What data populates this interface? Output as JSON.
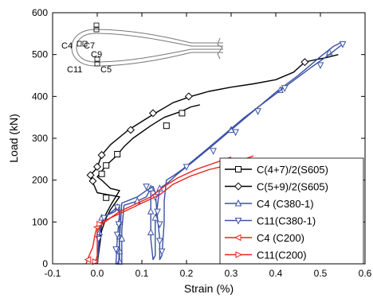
{
  "chart_data": {
    "type": "line",
    "xlabel": "Strain (%)",
    "ylabel": "Load (kN)",
    "xlim": [
      -0.1,
      0.6
    ],
    "ylim": [
      0,
      600
    ],
    "xticks": [
      -0.1,
      0.0,
      0.1,
      0.2,
      0.3,
      0.4,
      0.5,
      0.6
    ],
    "xtick_labels": [
      "-0.1",
      "0.0",
      "0.1",
      "0.2",
      "0.3",
      "0.4",
      "0.5",
      "0.6"
    ],
    "yticks": [
      0,
      100,
      200,
      300,
      400,
      500,
      600
    ],
    "ytick_labels": [
      "0",
      "100",
      "200",
      "300",
      "400",
      "500",
      "600"
    ],
    "legend_position": "bottom-right",
    "inset_labels": [
      "C4",
      "C7",
      "C9",
      "C11",
      "C5"
    ],
    "series": [
      {
        "name": "C(4+7)/2(S605)",
        "color": "#000000",
        "marker": "square",
        "points": [
          [
            0.0,
            0
          ],
          [
            0.005,
            50
          ],
          [
            0.01,
            95
          ],
          [
            0.02,
            120
          ],
          [
            0.03,
            140
          ],
          [
            0.05,
            175
          ],
          [
            0.03,
            180
          ],
          [
            0.01,
            200
          ],
          [
            0.0,
            208
          ],
          [
            0.02,
            235
          ],
          [
            0.045,
            260
          ],
          [
            0.06,
            280
          ],
          [
            0.08,
            300
          ],
          [
            0.12,
            330
          ],
          [
            0.15,
            350
          ],
          [
            0.19,
            365
          ],
          [
            0.21,
            375
          ],
          [
            0.23,
            380
          ]
        ],
        "marker_points": [
          [
            0.02,
            158
          ],
          [
            0.01,
            215
          ],
          [
            0.02,
            235
          ],
          [
            0.045,
            262
          ],
          [
            0.155,
            330
          ],
          [
            0.19,
            360
          ]
        ]
      },
      {
        "name": "C(5+9)/2(S605)",
        "color": "#000000",
        "marker": "diamond",
        "points": [
          [
            0.0,
            0
          ],
          [
            0.005,
            40
          ],
          [
            0.01,
            80
          ],
          [
            0.02,
            110
          ],
          [
            0.03,
            130
          ],
          [
            0.05,
            160
          ],
          [
            0.0,
            170
          ],
          [
            -0.01,
            195
          ],
          [
            -0.015,
            212
          ],
          [
            0.0,
            230
          ],
          [
            0.01,
            260
          ],
          [
            0.03,
            285
          ],
          [
            0.07,
            320
          ],
          [
            0.1,
            340
          ],
          [
            0.13,
            360
          ],
          [
            0.17,
            385
          ],
          [
            0.21,
            400
          ],
          [
            0.25,
            412
          ],
          [
            0.3,
            422
          ],
          [
            0.35,
            430
          ],
          [
            0.4,
            440
          ],
          [
            0.44,
            458
          ],
          [
            0.465,
            482
          ],
          [
            0.49,
            488
          ],
          [
            0.51,
            492
          ],
          [
            0.54,
            500
          ]
        ],
        "marker_points": [
          [
            -0.01,
            198
          ],
          [
            -0.015,
            212
          ],
          [
            0.0,
            232
          ],
          [
            0.01,
            260
          ],
          [
            0.075,
            320
          ],
          [
            0.125,
            360
          ],
          [
            0.205,
            400
          ],
          [
            0.465,
            482
          ]
        ]
      },
      {
        "name": "C4  (C380-1)",
        "color": "#3a50a6",
        "marker": "triangle-up",
        "points": [
          [
            0.0,
            0
          ],
          [
            0.005,
            60
          ],
          [
            0.01,
            100
          ],
          [
            0.02,
            115
          ],
          [
            0.04,
            125
          ],
          [
            0.045,
            135
          ],
          [
            0.05,
            140
          ],
          [
            0.05,
            120
          ],
          [
            0.05,
            80
          ],
          [
            0.05,
            0
          ],
          [
            0.055,
            0
          ],
          [
            0.055,
            80
          ],
          [
            0.06,
            140
          ],
          [
            0.09,
            150
          ],
          [
            0.11,
            160
          ],
          [
            0.12,
            180
          ],
          [
            0.12,
            120
          ],
          [
            0.12,
            60
          ],
          [
            0.125,
            10
          ],
          [
            0.13,
            20
          ],
          [
            0.13,
            100
          ],
          [
            0.14,
            180
          ],
          [
            0.16,
            195
          ],
          [
            0.18,
            215
          ],
          [
            0.21,
            240
          ],
          [
            0.25,
            275
          ],
          [
            0.3,
            320
          ],
          [
            0.35,
            365
          ],
          [
            0.4,
            410
          ],
          [
            0.45,
            450
          ],
          [
            0.5,
            495
          ],
          [
            0.53,
            520
          ],
          [
            0.545,
            528
          ]
        ],
        "marker_points": [
          [
            0.005,
            75
          ],
          [
            0.01,
            110
          ],
          [
            0.045,
            135
          ],
          [
            0.05,
            100
          ],
          [
            0.05,
            65
          ],
          [
            0.05,
            30
          ],
          [
            0.05,
            5
          ],
          [
            0.055,
            60
          ],
          [
            0.09,
            150
          ],
          [
            0.12,
            180
          ],
          [
            0.12,
            125
          ],
          [
            0.12,
            75
          ],
          [
            0.13,
            110
          ],
          [
            0.14,
            180
          ],
          [
            0.3,
            320
          ],
          [
            0.41,
            415
          ],
          [
            0.52,
            505
          ]
        ]
      },
      {
        "name": "C11(C380-1)",
        "color": "#3a50a6",
        "marker": "triangle-down",
        "points": [
          [
            0.0,
            0
          ],
          [
            0.003,
            50
          ],
          [
            0.008,
            95
          ],
          [
            0.015,
            110
          ],
          [
            0.03,
            122
          ],
          [
            0.045,
            135
          ],
          [
            0.05,
            120
          ],
          [
            0.045,
            60
          ],
          [
            0.042,
            0
          ],
          [
            0.048,
            0
          ],
          [
            0.05,
            60
          ],
          [
            0.055,
            145
          ],
          [
            0.09,
            160
          ],
          [
            0.11,
            175
          ],
          [
            0.125,
            185
          ],
          [
            0.13,
            170
          ],
          [
            0.135,
            110
          ],
          [
            0.14,
            60
          ],
          [
            0.14,
            10
          ],
          [
            0.145,
            20
          ],
          [
            0.15,
            100
          ],
          [
            0.15,
            150
          ],
          [
            0.155,
            200
          ],
          [
            0.17,
            210
          ],
          [
            0.19,
            225
          ],
          [
            0.23,
            260
          ],
          [
            0.28,
            305
          ],
          [
            0.33,
            350
          ],
          [
            0.38,
            390
          ],
          [
            0.43,
            430
          ],
          [
            0.48,
            470
          ],
          [
            0.52,
            500
          ],
          [
            0.55,
            525
          ]
        ],
        "marker_points": [
          [
            0.003,
            60
          ],
          [
            0.015,
            110
          ],
          [
            0.045,
            135
          ],
          [
            0.048,
            95
          ],
          [
            0.045,
            70
          ],
          [
            0.042,
            35
          ],
          [
            0.11,
            185
          ],
          [
            0.13,
            160
          ],
          [
            0.135,
            125
          ],
          [
            0.14,
            95
          ],
          [
            0.14,
            55
          ],
          [
            0.145,
            30
          ],
          [
            0.2,
            232
          ],
          [
            0.26,
            270
          ],
          [
            0.31,
            315
          ],
          [
            0.36,
            365
          ],
          [
            0.42,
            420
          ],
          [
            0.5,
            475
          ],
          [
            0.55,
            525
          ]
        ]
      },
      {
        "name": "C4  (C200)",
        "color": "#e8241e",
        "marker": "triangle-left",
        "points": [
          [
            -0.025,
            0
          ],
          [
            -0.02,
            15
          ],
          [
            -0.01,
            40
          ],
          [
            -0.005,
            70
          ],
          [
            0.0,
            90
          ],
          [
            0.01,
            100
          ],
          [
            0.03,
            110
          ],
          [
            0.05,
            125
          ],
          [
            0.08,
            140
          ],
          [
            0.12,
            160
          ],
          [
            0.15,
            185
          ],
          [
            0.18,
            205
          ],
          [
            0.22,
            225
          ],
          [
            0.26,
            240
          ],
          [
            0.3,
            255
          ]
        ],
        "marker_points": [
          [
            -0.02,
            10
          ],
          [
            0.0,
            88
          ]
        ]
      },
      {
        "name": "C11(C200)",
        "color": "#e8241e",
        "marker": "triangle-right",
        "points": [
          [
            -0.005,
            0
          ],
          [
            0.0,
            20
          ],
          [
            0.0,
            50
          ],
          [
            0.0,
            80
          ],
          [
            0.01,
            95
          ],
          [
            0.03,
            110
          ],
          [
            0.06,
            125
          ],
          [
            0.1,
            145
          ],
          [
            0.14,
            165
          ],
          [
            0.17,
            190
          ],
          [
            0.21,
            210
          ],
          [
            0.25,
            225
          ],
          [
            0.29,
            235
          ],
          [
            0.33,
            250
          ],
          [
            0.35,
            258
          ]
        ],
        "marker_points": [
          [
            -0.005,
            5
          ],
          [
            0.005,
            95
          ]
        ]
      }
    ]
  },
  "legend": {
    "entries": [
      "C(4+7)/2(S605)",
      "C(5+9)/2(S605)",
      "C4  (C380-1)",
      "C11(C380-1)",
      "C4  (C200)",
      "C11(C200)"
    ]
  }
}
